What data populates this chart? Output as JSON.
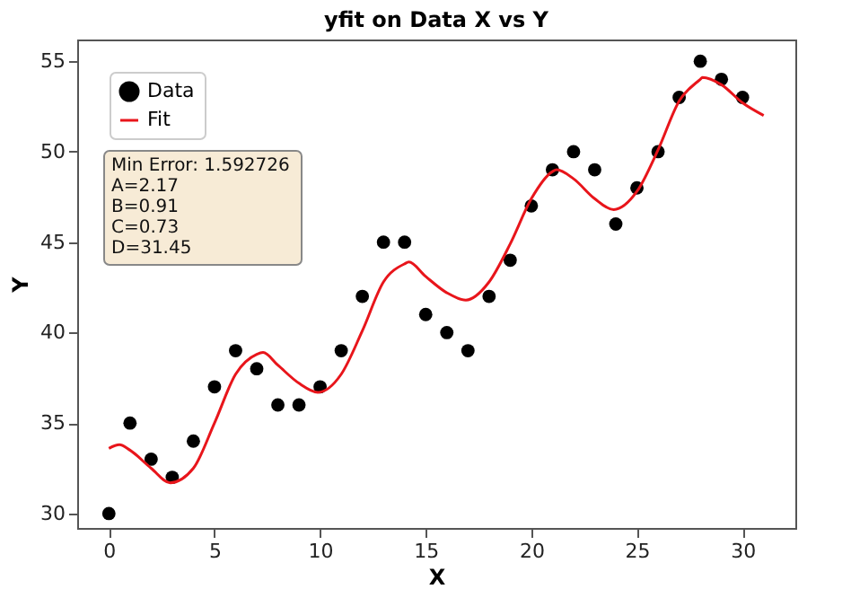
{
  "chart_data": {
    "type": "scatter",
    "title": "yfit on Data X vs Y",
    "xlabel": "X",
    "ylabel": "Y",
    "xlim": [
      -1.5,
      32.5
    ],
    "ylim": [
      29.2,
      56.2
    ],
    "xticks": [
      0,
      5,
      10,
      15,
      20,
      25,
      30
    ],
    "yticks": [
      30,
      35,
      40,
      45,
      50,
      55
    ],
    "grid": false,
    "legend": "top left",
    "annotations": [
      "Min Error: 1.592726\nA=2.17\nB=0.91\nC=0.73\nD=31.45"
    ],
    "series": [
      {
        "name": "Data",
        "type": "scatter",
        "color": "#000000",
        "marker": "circle",
        "x": [
          0,
          1,
          2,
          3,
          4,
          5,
          6,
          7,
          8,
          9,
          10,
          11,
          12,
          13,
          14,
          15,
          16,
          17,
          18,
          19,
          20,
          21,
          22,
          23,
          24,
          25,
          26,
          27,
          28,
          29,
          30
        ],
        "values": [
          30,
          35,
          33,
          32,
          34,
          37,
          39,
          38,
          36,
          36,
          37,
          39,
          42,
          45,
          45,
          41,
          40,
          39,
          42,
          44,
          47,
          49,
          50,
          49,
          46,
          48,
          50,
          53,
          55,
          54,
          53
        ]
      },
      {
        "name": "Fit",
        "type": "line",
        "color": "#e8151b",
        "line_style": "solid",
        "x": [
          0,
          0.5,
          1,
          2,
          2.9,
          4,
          5,
          6,
          7,
          7.3,
          8,
          9,
          9.9,
          11,
          12,
          13,
          14,
          14.2,
          15,
          16,
          16.9,
          18,
          19,
          20,
          21,
          21.2,
          22,
          23,
          23.9,
          25,
          26,
          27,
          28,
          28.1,
          29,
          30,
          31
        ],
        "values": [
          33.6,
          33.8,
          33.5,
          32.5,
          31.7,
          32.5,
          35.0,
          37.7,
          38.8,
          38.9,
          38.2,
          37.2,
          36.7,
          37.7,
          40.1,
          42.8,
          43.8,
          43.9,
          43.1,
          42.2,
          41.8,
          42.8,
          44.9,
          47.4,
          48.9,
          49.0,
          48.5,
          47.4,
          46.8,
          47.8,
          50.1,
          52.8,
          54.0,
          54.1,
          53.7,
          52.7,
          52.0
        ]
      }
    ]
  }
}
